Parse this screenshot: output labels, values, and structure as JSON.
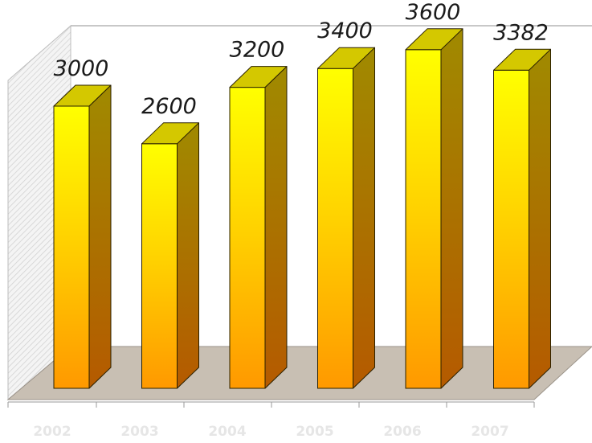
{
  "chart_data": {
    "type": "bar",
    "style": "3d",
    "categories": [
      "2002",
      "2003",
      "2004",
      "2005",
      "2006",
      "2007"
    ],
    "values": [
      3000,
      2600,
      3200,
      3400,
      3600,
      3382
    ],
    "data_labels": [
      "3000",
      "2600",
      "3200",
      "3400",
      "3600",
      "3382"
    ],
    "title": "",
    "xlabel": "",
    "ylabel": "",
    "ylim": [
      0,
      4000
    ],
    "grid": false,
    "legend": "none",
    "colors": {
      "bar_top": "#ffff00",
      "bar_bottom": "#ff9900",
      "bar_side": "#a08a00",
      "bar_cap": "#d4c800",
      "floor": "#c8bfb3",
      "wall": "#e9e9e9",
      "label": "#1a1a1a"
    }
  }
}
